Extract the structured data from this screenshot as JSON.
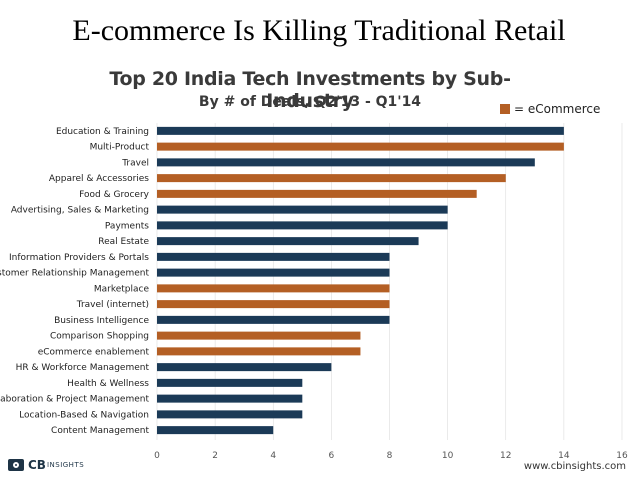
{
  "slide": {
    "title": "E-commerce Is Killing Traditional Retail"
  },
  "legend": {
    "label": "= eCommerce"
  },
  "colors": {
    "ecommerce": "#b45f24",
    "other": "#1b3a57",
    "grid": "#dddddd"
  },
  "footer": {
    "logo_main": "CB",
    "logo_sub": "INSIGHTS",
    "url": "www.cbinsights.com"
  },
  "chart_data": {
    "type": "bar",
    "orientation": "horizontal",
    "title": "Top 20 India Tech Investments by Sub-Industry",
    "subtitle": "By # of Deals, Q2'13 - Q1'14",
    "xlabel": "",
    "ylabel": "",
    "xlim": [
      0,
      16
    ],
    "xticks": [
      0,
      2,
      4,
      6,
      8,
      10,
      12,
      14,
      16
    ],
    "categories": [
      "Education & Training",
      "Multi-Product",
      "Travel",
      "Apparel & Accessories",
      "Food & Grocery",
      "Advertising, Sales & Marketing",
      "Payments",
      "Real Estate",
      "Information Providers & Portals",
      "Customer Relationship Management",
      "Marketplace",
      "Travel (internet)",
      "Business Intelligence",
      "Comparison Shopping",
      "eCommerce enablement",
      "HR & Workforce Management",
      "Health & Wellness",
      "Collaboration & Project Management",
      "Location-Based & Navigation",
      "Content Management"
    ],
    "values": [
      14,
      14,
      13,
      12,
      11,
      10,
      10,
      9,
      8,
      8,
      8,
      8,
      8,
      7,
      7,
      6,
      5,
      5,
      5,
      4
    ],
    "ecommerce": [
      false,
      true,
      false,
      true,
      true,
      false,
      false,
      false,
      false,
      false,
      true,
      true,
      false,
      true,
      true,
      false,
      false,
      false,
      false,
      false
    ],
    "legend": [
      "= eCommerce"
    ]
  }
}
